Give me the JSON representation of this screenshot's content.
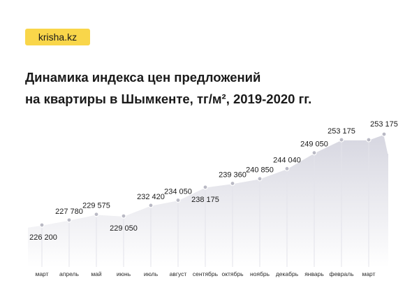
{
  "brand": {
    "logo_text": "krisha.kz",
    "logo_color": "#f9d64a"
  },
  "title": {
    "line1": "Динамика индекса цен предложений",
    "line2": "на квартиры в Шымкенте, тг/м², 2019-2020 гг."
  },
  "chart_data": {
    "type": "area",
    "title": "Динамика индекса цен предложений на квартиры в Шымкенте, тг/м², 2019-2020 гг.",
    "categories": [
      "март",
      "апрель",
      "май",
      "июнь",
      "июль",
      "август",
      "сентябрь",
      "октябрь",
      "ноябрь",
      "декабрь",
      "январь",
      "февраль",
      "март"
    ],
    "values": [
      226200,
      227780,
      229575,
      229050,
      232420,
      234050,
      238175,
      239360,
      240850,
      244040,
      249050,
      253175,
      253175
    ],
    "value_labels": [
      "226 200",
      "227 780",
      "229 575",
      "229 050",
      "232 420",
      "234 050",
      "238 175",
      "239 360",
      "240 850",
      "244 040",
      "249 050",
      "253 175",
      "253 175"
    ],
    "label_position": [
      "below",
      "above",
      "above",
      "below",
      "above",
      "above",
      "below",
      "above",
      "above",
      "above",
      "above",
      "above",
      "above"
    ],
    "xlabel": "",
    "ylabel": "",
    "grid": true,
    "legend": false,
    "colors": {
      "area_top": "#d6d6e0",
      "area_bottom": "#ffffff",
      "line": "#ffffff",
      "gridline": "#e3e3ea",
      "marker": "#b9b9c4"
    }
  }
}
